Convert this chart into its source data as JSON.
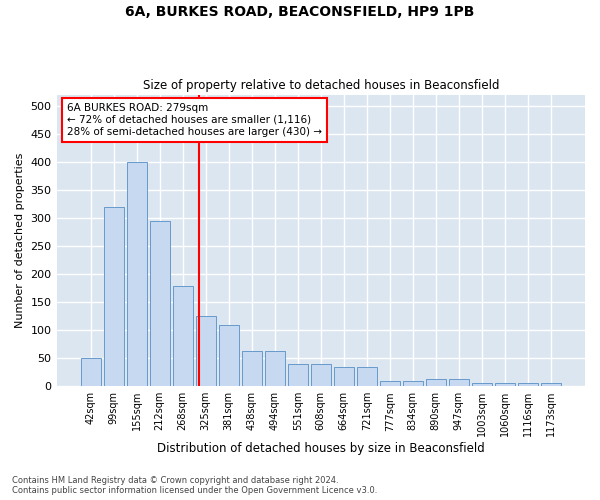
{
  "title1": "6A, BURKES ROAD, BEACONSFIELD, HP9 1PB",
  "title2": "Size of property relative to detached houses in Beaconsfield",
  "xlabel": "Distribution of detached houses by size in Beaconsfield",
  "ylabel": "Number of detached properties",
  "footer1": "Contains HM Land Registry data © Crown copyright and database right 2024.",
  "footer2": "Contains public sector information licensed under the Open Government Licence v3.0.",
  "bar_labels": [
    "42sqm",
    "99sqm",
    "155sqm",
    "212sqm",
    "268sqm",
    "325sqm",
    "381sqm",
    "438sqm",
    "494sqm",
    "551sqm",
    "608sqm",
    "664sqm",
    "721sqm",
    "777sqm",
    "834sqm",
    "890sqm",
    "947sqm",
    "1003sqm",
    "1060sqm",
    "1116sqm",
    "1173sqm"
  ],
  "bar_values": [
    50,
    320,
    400,
    295,
    178,
    125,
    110,
    62,
    62,
    40,
    40,
    35,
    35,
    10,
    10,
    13,
    13,
    6,
    6,
    5,
    5
  ],
  "bar_color": "#c6d9f0",
  "bar_edge_color": "#6699cc",
  "bg_color": "#dce6f1",
  "grid_color": "white",
  "annotation_line1": "6A BURKES ROAD: 279sqm",
  "annotation_line2": "← 72% of detached houses are smaller (1,116)",
  "annotation_line3": "28% of semi-detached houses are larger (430) →",
  "red_line_x": 4.72,
  "annotation_box_color": "white",
  "annotation_box_edge_color": "red",
  "red_line_color": "red",
  "ylim": [
    0,
    520
  ],
  "yticks": [
    0,
    50,
    100,
    150,
    200,
    250,
    300,
    350,
    400,
    450,
    500
  ]
}
